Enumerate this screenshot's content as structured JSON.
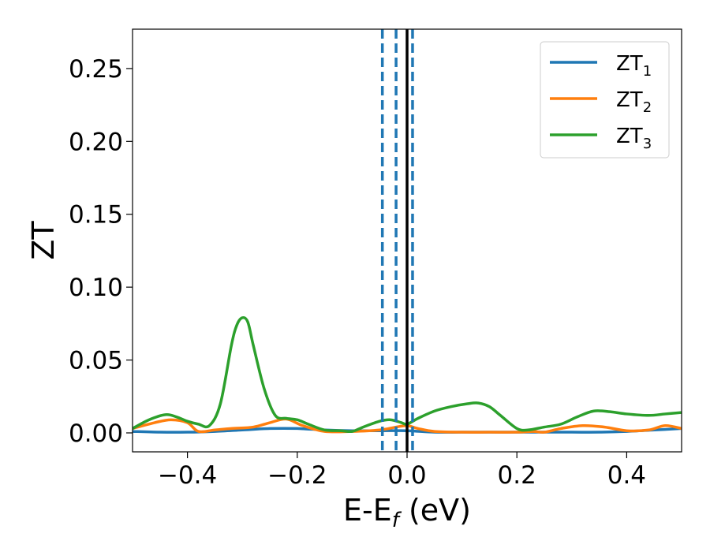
{
  "chart_data": {
    "type": "line",
    "title": "",
    "xlabel": {
      "base": "E-E",
      "sub": "f",
      "suffix": " (eV)"
    },
    "ylabel": "ZT",
    "xlim": [
      -0.5,
      0.5
    ],
    "ylim": [
      -0.013,
      0.277
    ],
    "xticks": [
      -0.4,
      -0.2,
      0.0,
      0.2,
      0.4
    ],
    "xtick_labels": [
      "−0.4",
      "−0.2",
      "0.0",
      "0.2",
      "0.4"
    ],
    "yticks": [
      0.0,
      0.05,
      0.1,
      0.15,
      0.2,
      0.25
    ],
    "ytick_labels": [
      "0.00",
      "0.05",
      "0.10",
      "0.15",
      "0.20",
      "0.25"
    ],
    "grid": false,
    "legend_position": "top-right",
    "vlines": [
      {
        "x": 0.0,
        "style": "solid",
        "color": "#000000"
      },
      {
        "x": -0.045,
        "style": "dashed",
        "color": "#1f77b4"
      },
      {
        "x": -0.02,
        "style": "dashed",
        "color": "#1f77b4"
      },
      {
        "x": 0.01,
        "style": "dashed",
        "color": "#1f77b4"
      }
    ],
    "series": [
      {
        "name": "ZT",
        "sub": "1",
        "color": "#1f77b4",
        "x": [
          -0.5,
          -0.45,
          -0.4,
          -0.35,
          -0.3,
          -0.25,
          -0.2,
          -0.15,
          -0.1,
          -0.05,
          0.0,
          0.05,
          0.1,
          0.15,
          0.2,
          0.25,
          0.3,
          0.35,
          0.4,
          0.45,
          0.5
        ],
        "y": [
          0.001,
          0.0005,
          0.0005,
          0.001,
          0.002,
          0.003,
          0.003,
          0.002,
          0.0015,
          0.0015,
          0.0015,
          0.0005,
          0.0005,
          0.0005,
          0.0005,
          0.0005,
          0.0005,
          0.0005,
          0.001,
          0.002,
          0.003
        ]
      },
      {
        "name": "ZT",
        "sub": "2",
        "color": "#ff7f0e",
        "x": [
          -0.5,
          -0.46,
          -0.43,
          -0.4,
          -0.38,
          -0.35,
          -0.32,
          -0.28,
          -0.25,
          -0.22,
          -0.19,
          -0.15,
          -0.1,
          -0.05,
          -0.02,
          0.0,
          0.02,
          0.05,
          0.1,
          0.15,
          0.2,
          0.23,
          0.25,
          0.28,
          0.32,
          0.36,
          0.4,
          0.44,
          0.47,
          0.5
        ],
        "y": [
          0.003,
          0.007,
          0.009,
          0.007,
          0.001,
          0.002,
          0.003,
          0.004,
          0.007,
          0.0095,
          0.005,
          0.001,
          0.001,
          0.002,
          0.004,
          0.005,
          0.003,
          0.001,
          0.0005,
          0.0005,
          0.0005,
          0.001,
          0.0005,
          0.003,
          0.005,
          0.004,
          0.0015,
          0.002,
          0.005,
          0.003
        ]
      },
      {
        "name": "ZT",
        "sub": "3",
        "color": "#2ca02c",
        "x": [
          -0.5,
          -0.47,
          -0.44,
          -0.42,
          -0.4,
          -0.38,
          -0.36,
          -0.34,
          -0.32,
          -0.31,
          -0.3,
          -0.29,
          -0.28,
          -0.26,
          -0.24,
          -0.22,
          -0.2,
          -0.18,
          -0.15,
          -0.12,
          -0.1,
          -0.08,
          -0.05,
          -0.03,
          -0.01,
          0.0,
          0.02,
          0.05,
          0.08,
          0.11,
          0.13,
          0.15,
          0.17,
          0.2,
          0.22,
          0.25,
          0.28,
          0.31,
          0.34,
          0.37,
          0.4,
          0.44,
          0.47,
          0.5
        ],
        "y": [
          0.003,
          0.009,
          0.0125,
          0.011,
          0.008,
          0.006,
          0.005,
          0.02,
          0.06,
          0.074,
          0.079,
          0.076,
          0.06,
          0.03,
          0.012,
          0.01,
          0.009,
          0.006,
          0.002,
          0.0015,
          0.001,
          0.004,
          0.008,
          0.009,
          0.007,
          0.006,
          0.01,
          0.015,
          0.018,
          0.02,
          0.0205,
          0.018,
          0.012,
          0.003,
          0.002,
          0.004,
          0.006,
          0.011,
          0.015,
          0.0145,
          0.013,
          0.012,
          0.013,
          0.014
        ]
      }
    ]
  }
}
